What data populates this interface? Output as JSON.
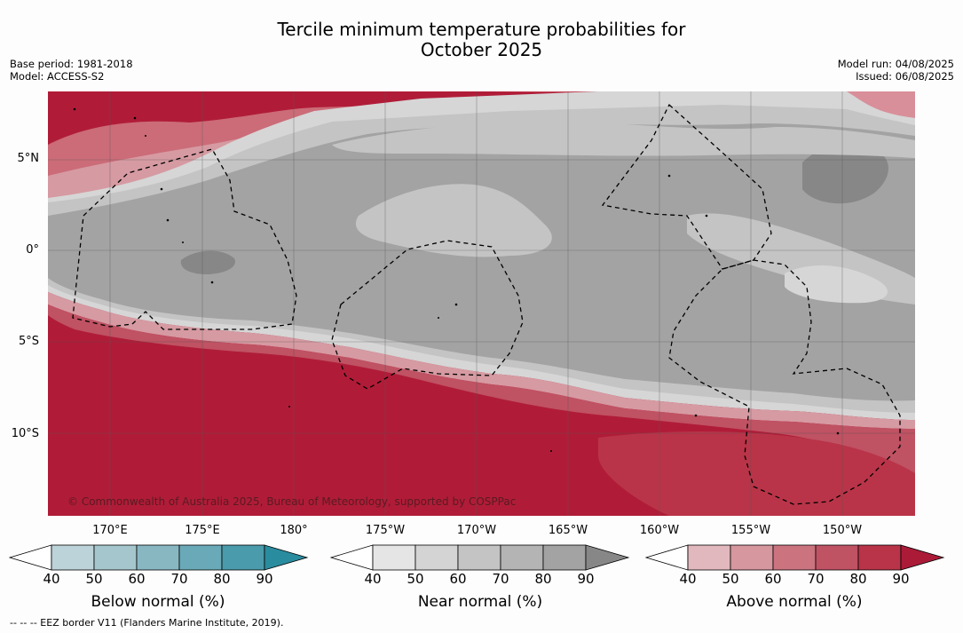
{
  "title": {
    "line1": "Tercile minimum temperature probabilities for",
    "line2": "October 2025"
  },
  "meta_left": {
    "base_period": "Base period: 1981-2018",
    "model": "Model: ACCESS-S2"
  },
  "meta_right": {
    "model_run": "Model run: 04/08/2025",
    "issued": "Issued: 06/08/2025"
  },
  "map": {
    "lat_labels": [
      "5°N",
      "0°",
      "5°S",
      "10°S"
    ],
    "lon_labels": [
      "170°E",
      "175°E",
      "180°",
      "175°W",
      "170°W",
      "165°W",
      "160°W",
      "155°W",
      "150°W"
    ],
    "copyright": "© Commonwealth of Australia 2025, Bureau of Meteorology, supported by COSPPac",
    "colors": {
      "near_normal": "#a3a3a3",
      "above_normal": "#b01c38"
    }
  },
  "colorbars": {
    "below": {
      "title": "Below normal (%)",
      "ticks": [
        "40",
        "50",
        "60",
        "70",
        "80",
        "90"
      ],
      "colors": [
        "#ffffff",
        "#bcd3d9",
        "#a5c6cd",
        "#88b7c2",
        "#6aa9b7",
        "#4a9bab",
        "#2a8c9f"
      ]
    },
    "near": {
      "title": "Near normal (%)",
      "ticks": [
        "40",
        "50",
        "60",
        "70",
        "80",
        "90"
      ],
      "colors": [
        "#ffffff",
        "#e5e5e5",
        "#d4d4d4",
        "#c4c4c4",
        "#b4b4b4",
        "#a3a3a3",
        "#878787"
      ]
    },
    "above": {
      "title": "Above normal (%)",
      "ticks": [
        "40",
        "50",
        "60",
        "70",
        "80",
        "90"
      ],
      "colors": [
        "#ffffff",
        "#e1b8bd",
        "#d6979f",
        "#cb7480",
        "#bf5263",
        "#b93448",
        "#ab1b38"
      ]
    }
  },
  "footer": "-- -- -- EEZ border V11 (Flanders Marine Institute, 2019)."
}
